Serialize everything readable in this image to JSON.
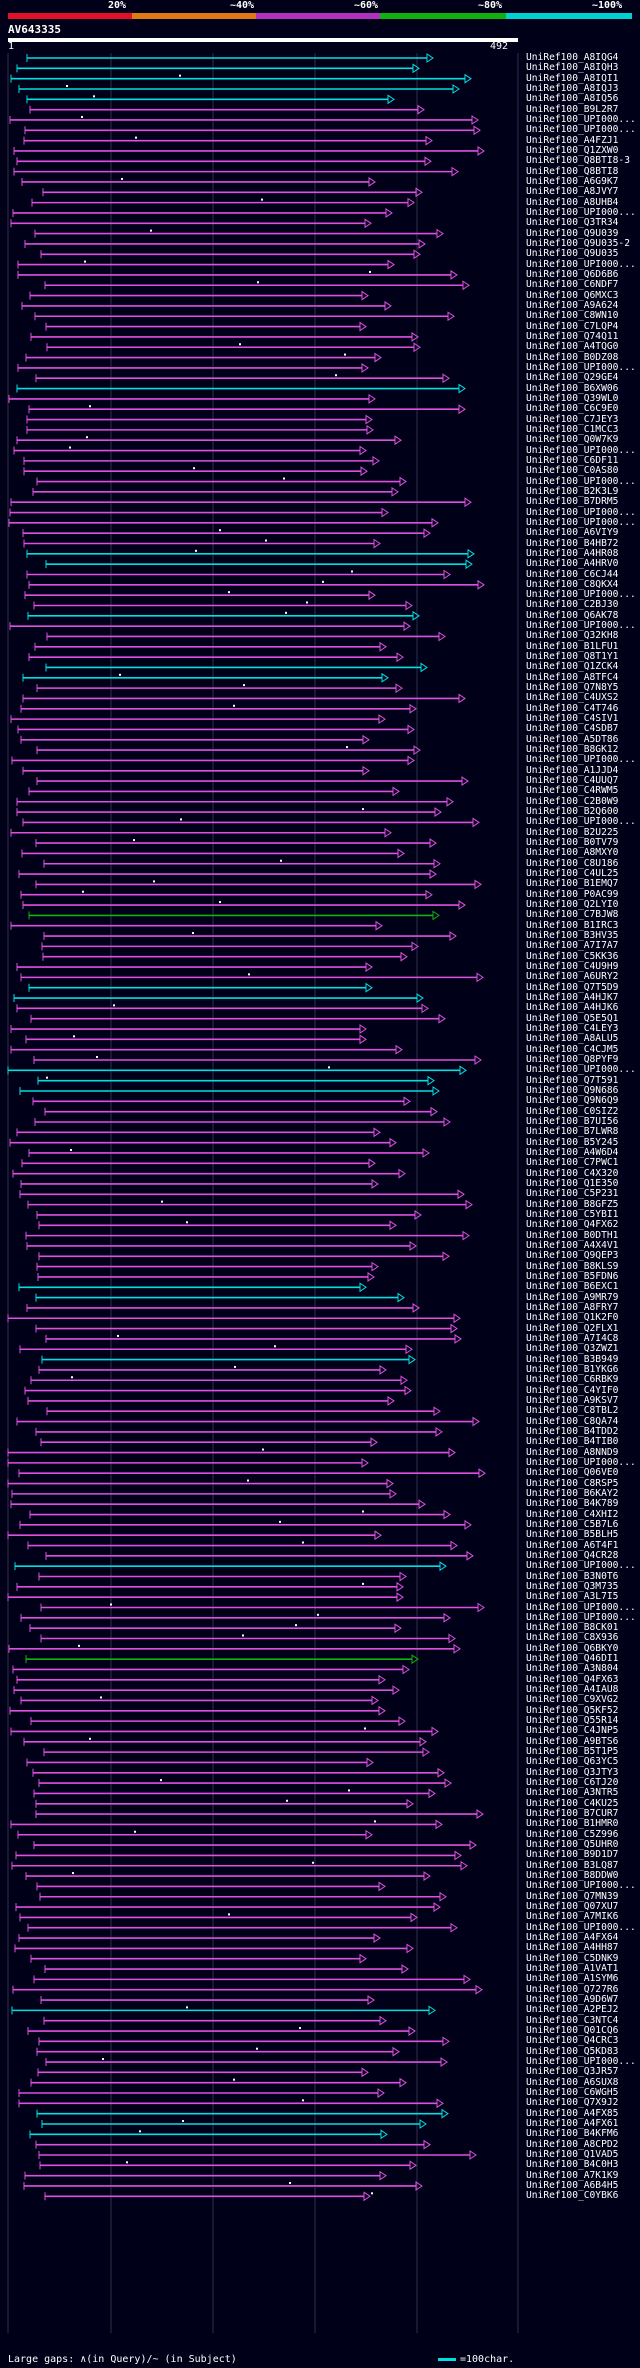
{
  "legend": {
    "labels": [
      "20%",
      "~40%",
      "~60%",
      "~80%",
      "~100%"
    ],
    "segment_colors": [
      "#e0102a",
      "#e07818",
      "#b030c0",
      "#10b010",
      "#00d0d0"
    ]
  },
  "query": {
    "name": "AV643335",
    "start": "1",
    "end": "492"
  },
  "colors": {
    "background": "#000018",
    "grid": "#303048",
    "cyan": "#00e0e0",
    "magenta": "#e050e0",
    "orange": "#e07818",
    "green": "#10b010"
  },
  "hits": [
    "UniRef100_A8IQG4",
    "UniRef100_A8IQH3",
    "UniRef100_A8IQI1",
    "UniRef100_A8IQJ3",
    "UniRef100_A8IQ56",
    "UniRef100_B9L2R7",
    "UniRef100_UPI000...",
    "UniRef100_UPI000...",
    "UniRef100_A4FZJ1",
    "UniRef100_Q1ZXW0",
    "UniRef100_Q8BTI8-3",
    "UniRef100_Q8BTI8",
    "UniRef100_A6G9K7",
    "UniRef100_A8JVY7",
    "UniRef100_A8UHB4",
    "UniRef100_UPI000...",
    "UniRef100_Q3TR34",
    "UniRef100_Q9U039",
    "UniRef100_Q9U035-2",
    "UniRef100_Q9U035",
    "UniRef100_UPI000...",
    "UniRef100_Q6D6B6",
    "UniRef100_C6NDF7",
    "UniRef100_Q6MXC3",
    "UniRef100_A9A624",
    "UniRef100_C8WN10",
    "UniRef100_C7LQP4",
    "UniRef100_Q74Q11",
    "UniRef100_A4TQG0",
    "UniRef100_B0DZ08",
    "UniRef100_UPI000...",
    "UniRef100_Q29GE4",
    "UniRef100_B6XW06",
    "UniRef100_Q39WL0",
    "UniRef100_C6C9E0",
    "UniRef100_C7JEY3",
    "UniRef100_C1MCC3",
    "UniRef100_Q0W7K9",
    "UniRef100_UPI000...",
    "UniRef100_C6DF11",
    "UniRef100_C0AS80",
    "UniRef100_UPI000...",
    "UniRef100_B2K3L9",
    "UniRef100_B7DRM5",
    "UniRef100_UPI000...",
    "UniRef100_UPI000...",
    "UniRef100_A6VIY9",
    "UniRef100_B4HB72",
    "UniRef100_A4HR08",
    "UniRef100_A4HRV0",
    "UniRef100_C6CJ44",
    "UniRef100_C8QKX4",
    "UniRef100_UPI000...",
    "UniRef100_C2BJ30",
    "UniRef100_Q6AK78",
    "UniRef100_UPI000...",
    "UniRef100_Q32KH8",
    "UniRef100_B1LFU1",
    "UniRef100_Q8T1Y1",
    "UniRef100_Q1ZCK4",
    "UniRef100_A8TFC4",
    "UniRef100_Q7N8Y5",
    "UniRef100_C4UXS2",
    "UniRef100_C4T746",
    "UniRef100_C4SIV1",
    "UniRef100_C4SDB7",
    "UniRef100_A5DT86",
    "UniRef100_B8GK12",
    "UniRef100_UPI000...",
    "UniRef100_A1JJD4",
    "UniRef100_C4UUQ7",
    "UniRef100_C4RWM5",
    "UniRef100_C2B0W9",
    "UniRef100_B2Q600",
    "UniRef100_UPI000...",
    "UniRef100_B2U225",
    "UniRef100_B0TV79",
    "UniRef100_A8MXY0",
    "UniRef100_C8U186",
    "UniRef100_C4UL25",
    "UniRef100_B1EMQ7",
    "UniRef100_P0AC99",
    "UniRef100_Q2LYI0",
    "UniRef100_C7BJW8",
    "UniRef100_B1IRC3",
    "UniRef100_B3HV35",
    "UniRef100_A7I7A7",
    "UniRef100_C5KK36",
    "UniRef100_C4U9H9",
    "UniRef100_A6URY2",
    "UniRef100_Q7T5D9",
    "UniRef100_A4HJK7",
    "UniRef100_A4HJK6",
    "UniRef100_Q5E5Q1",
    "UniRef100_C4LEY3",
    "UniRef100_A8ALU5",
    "UniRef100_C4CJM5",
    "UniRef100_Q8PYF9",
    "UniRef100_UPI000...",
    "UniRef100_Q7T591",
    "UniRef100_Q9N686",
    "UniRef100_Q9N6Q9",
    "UniRef100_C0SIZ2",
    "UniRef100_B7UI56",
    "UniRef100_B7LWR8",
    "UniRef100_B5Y245",
    "UniRef100_A4W6D4",
    "UniRef100_C7PWC1",
    "UniRef100_C4X320",
    "UniRef100_Q1E350",
    "UniRef100_C5P231",
    "UniRef100_B8GFZ5",
    "UniRef100_C5YBI1",
    "UniRef100_Q4FX62",
    "UniRef100_B0DTH1",
    "UniRef100_A4X4V1",
    "UniRef100_Q9QEP3",
    "UniRef100_B8KLS9",
    "UniRef100_B5FDN6",
    "UniRef100_B6EXC1",
    "UniRef100_A9MR79",
    "UniRef100_A8FRY7",
    "UniRef100_Q1K2F0",
    "UniRef100_Q2FLX1",
    "UniRef100_A7I4C8",
    "UniRef100_Q3ZWZ1",
    "UniRef100_B3B949",
    "UniRef100_B1YKG6",
    "UniRef100_C6RBK9",
    "UniRef100_C4YIF0",
    "UniRef100_A9KSV7",
    "UniRef100_C8TBL2",
    "UniRef100_C8QA74",
    "UniRef100_B4TDD2",
    "UniRef100_B4TIB0",
    "UniRef100_A8NND9",
    "UniRef100_UPI000...",
    "UniRef100_Q06VE0",
    "UniRef100_C8RSP5",
    "UniRef100_B6KAY2",
    "UniRef100_B4K789",
    "UniRef100_C4XHI2",
    "UniRef100_C5B7L6",
    "UniRef100_B5BLH5",
    "UniRef100_A6T4F1",
    "UniRef100_Q4CR28",
    "UniRef100_UPI000...",
    "UniRef100_B3N0T6",
    "UniRef100_Q3M735",
    "UniRef100_A3L7I5",
    "UniRef100_UPI000...",
    "UniRef100_UPI000...",
    "UniRef100_B8CK01",
    "UniRef100_C8X936",
    "UniRef100_Q6BKY0",
    "UniRef100_Q46DI1",
    "UniRef100_A3N804",
    "UniRef100_Q4FX63",
    "UniRef100_A4IAU8",
    "UniRef100_C9XVG2",
    "UniRef100_Q5KF52",
    "UniRef100_Q55R14",
    "UniRef100_C4JNP5",
    "UniRef100_A9BTS6",
    "UniRef100_B5T1P5",
    "UniRef100_Q63YC5",
    "UniRef100_Q3JTY3",
    "UniRef100_C6TJ20",
    "UniRef100_A3NTR5",
    "UniRef100_C4KU25",
    "UniRef100_B7CUR7",
    "UniRef100_B1HMR0",
    "UniRef100_C5Z996",
    "UniRef100_Q5UHR0",
    "UniRef100_B9D1D7",
    "UniRef100_B3LQ87",
    "UniRef100_B8DDW0",
    "UniRef100_UPI000...",
    "UniRef100_Q7MN39",
    "UniRef100_Q07XU7",
    "UniRef100_A7MIK6",
    "UniRef100_UPI000...",
    "UniRef100_A4FX64",
    "UniRef100_A4HH87",
    "UniRef100_C5DNK9",
    "UniRef100_A1VAT1",
    "UniRef100_A1SYM6",
    "UniRef100_Q727R6",
    "UniRef100_A9D6W7",
    "UniRef100_A2PEJ2",
    "UniRef100_C3NTC4",
    "UniRef100_Q01CQ6",
    "UniRef100_Q4CRC3",
    "UniRef100_Q5KD83",
    "UniRef100_UPI000...",
    "UniRef100_Q3JR57",
    "UniRef100_A6SUX8",
    "UniRef100_C6WGH5",
    "UniRef100_Q7X9J2",
    "UniRef100_A4FX85",
    "UniRef100_A4FX61",
    "UniRef100_B4KFM6",
    "UniRef100_A8CPD2",
    "UniRef100_Q1VAD5",
    "UniRef100_B4C0H3",
    "UniRef100_A7K1K9",
    "UniRef100_A6B4H5",
    "UniRef100_C0YBK6"
  ],
  "footer": {
    "large_gaps": "Large gaps: ∧(in Query)/~ (in Subject)",
    "scale": "=100char."
  }
}
